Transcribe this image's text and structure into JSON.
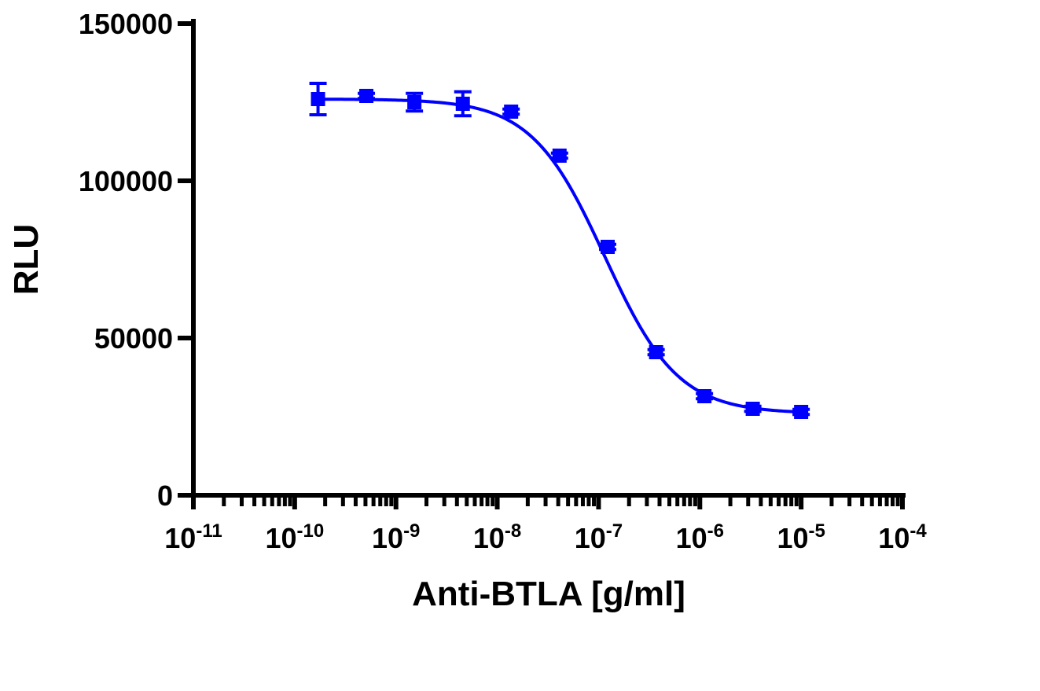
{
  "chart_data": {
    "type": "scatter",
    "title": "",
    "xlabel": "Anti-BTLA [g/ml]",
    "ylabel": "RLU",
    "x_scale": "log",
    "xlim": [
      1e-11,
      0.0001
    ],
    "ylim": [
      0,
      150000
    ],
    "grid": false,
    "legend": "none",
    "y_ticks": [
      {
        "value": 0,
        "label": "0"
      },
      {
        "value": 50000,
        "label": "50000"
      },
      {
        "value": 100000,
        "label": "100000"
      },
      {
        "value": 150000,
        "label": "150000"
      }
    ],
    "x_ticks": [
      {
        "value": 1e-11,
        "base": "10",
        "exp": "-11"
      },
      {
        "value": 1e-10,
        "base": "10",
        "exp": "-10"
      },
      {
        "value": 1e-09,
        "base": "10",
        "exp": "-9"
      },
      {
        "value": 1e-08,
        "base": "10",
        "exp": "-8"
      },
      {
        "value": 1e-07,
        "base": "10",
        "exp": "-7"
      },
      {
        "value": 1e-06,
        "base": "10",
        "exp": "-6"
      },
      {
        "value": 1e-05,
        "base": "10",
        "exp": "-5"
      },
      {
        "value": 0.0001,
        "base": "10",
        "exp": "-4"
      }
    ],
    "series_color": "#0000ff",
    "series": [
      {
        "x": [
          1.7e-10,
          5.1e-10,
          1.52e-09,
          4.57e-09,
          1.37e-08,
          4.12e-08,
          1.23e-07,
          3.7e-07,
          1.11e-06,
          3.33e-06,
          1e-05
        ],
        "y": [
          126000,
          127000,
          125000,
          124500,
          122000,
          108000,
          79000,
          45500,
          31500,
          27500,
          26500
        ],
        "err": [
          5000,
          800,
          2800,
          3800,
          800,
          800,
          800,
          800,
          800,
          800,
          800
        ]
      }
    ],
    "fit": {
      "model": "four-parameter logistic",
      "top": 126000,
      "bottom": 26000,
      "ec50": 1.15e-07,
      "hill": 1.2
    }
  }
}
